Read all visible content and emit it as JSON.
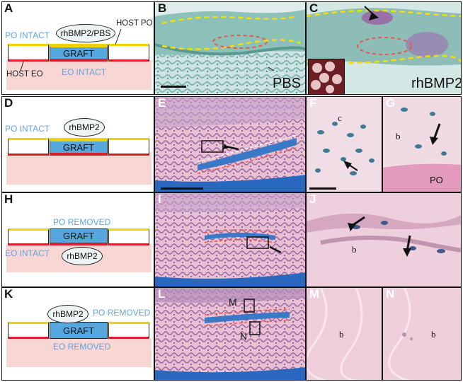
{
  "panels": {
    "A": "A",
    "B": "B",
    "C": "C",
    "D": "D",
    "E": "E",
    "F": "F",
    "G": "G",
    "H": "H",
    "I": "I",
    "J": "J",
    "K": "K",
    "L": "L",
    "M": "M",
    "N": "N"
  },
  "rowA": {
    "po_intact": "PO INTACT",
    "bubble": "rhBMP2/PBS",
    "host_po": "HOST PO",
    "graft": "GRAFT",
    "host_eo": "HOST EO",
    "eo_intact": "EO INTACT"
  },
  "rowD": {
    "po_intact": "PO INTACT",
    "bubble": "rhBMP2",
    "graft": "GRAFT"
  },
  "rowH": {
    "po_removed": "PO REMOVED",
    "graft": "GRAFT",
    "eo_intact": "EO INTACT",
    "bubble": "rhBMP2"
  },
  "rowK": {
    "bubble": "rhBMP2",
    "po_removed": "PO REMOVED",
    "graft": "GRAFT",
    "eo_removed": "EO REMOVED"
  },
  "panelB": {
    "caption": "PBS"
  },
  "panelC": {
    "caption": "rhBMP2"
  },
  "panelF": {
    "c": "c"
  },
  "panelG": {
    "b": "b",
    "po": "PO"
  },
  "panelJ": {
    "b": "b"
  },
  "panelL": {
    "m": "M",
    "n": "N"
  },
  "panelM": {
    "b": "b"
  },
  "panelN": {
    "b": "b"
  },
  "colors": {
    "graft_blue": "#55a7dd",
    "label_blue": "#5fa6e0",
    "host_pink": "#f7d6d4",
    "po_yellow": "#f0d200",
    "eo_red": "#d6202a",
    "safranin_green": "#7fb7b0",
    "he_pink": "#e7b7cc",
    "outline_yellow": "#f5e000",
    "outline_red": "#e8574b"
  }
}
